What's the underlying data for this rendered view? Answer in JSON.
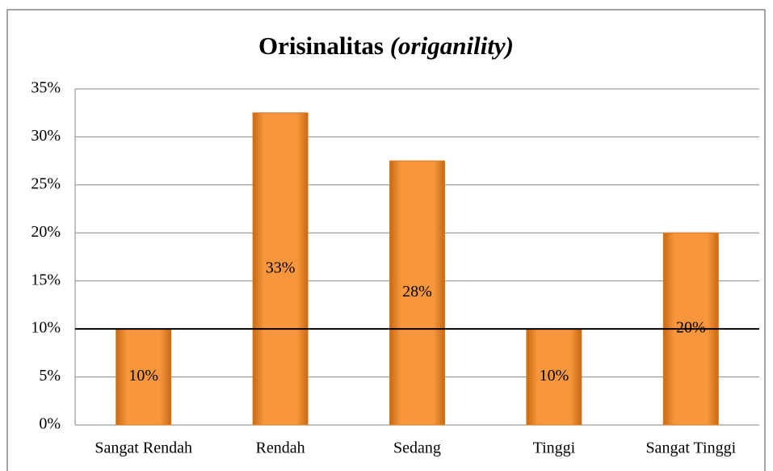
{
  "chart_data": {
    "type": "bar",
    "title": "Orisinalitas",
    "title_note": "(origanility)",
    "categories": [
      "Sangat Rendah",
      "Rendah",
      "Sedang",
      "Tinggi",
      "Sangat Tinggi"
    ],
    "values": [
      10,
      32.5,
      27.5,
      10,
      20
    ],
    "value_labels": [
      "10%",
      "33%",
      "28%",
      "10%",
      "20%"
    ],
    "color": "#f7963c",
    "ylim": [
      0,
      35
    ],
    "yticks": [
      {
        "value": 0,
        "label": "0%"
      },
      {
        "value": 5,
        "label": "5%"
      },
      {
        "value": 10,
        "label": "10%"
      },
      {
        "value": 15,
        "label": "15%"
      },
      {
        "value": 20,
        "label": "20%"
      },
      {
        "value": 25,
        "label": "25%"
      },
      {
        "value": 30,
        "label": "30%"
      },
      {
        "value": 35,
        "label": "35%"
      }
    ],
    "grid": true,
    "reference_line": 10
  }
}
